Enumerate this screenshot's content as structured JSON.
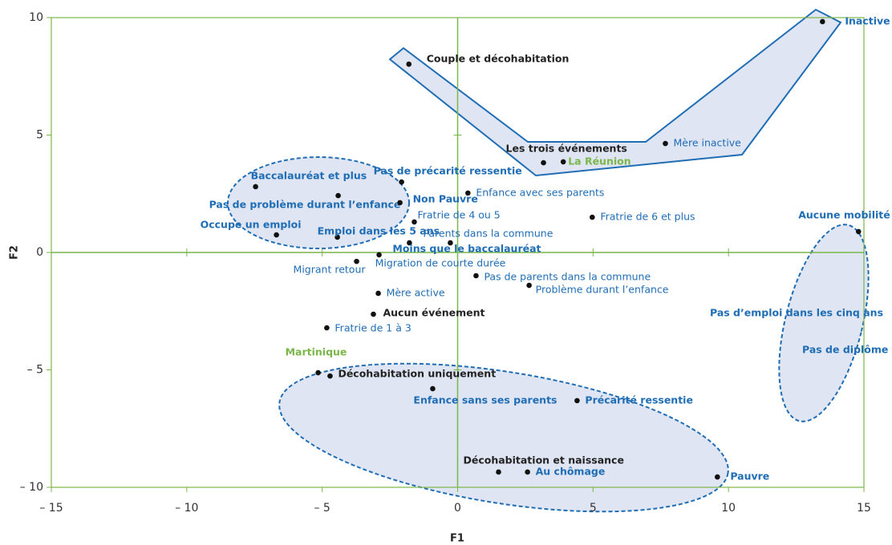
{
  "chart_data": {
    "type": "scatter",
    "xlabel": "F1",
    "ylabel": "F2",
    "xlim": [
      -15,
      15
    ],
    "ylim": [
      -10,
      10
    ],
    "xticks": [
      {
        "value": -15,
        "label": "– 15"
      },
      {
        "value": -10,
        "label": "– 10"
      },
      {
        "value": -5,
        "label": "– 5"
      },
      0,
      5,
      10,
      15
    ],
    "yticks": [
      {
        "value": -10,
        "label": "– 10"
      },
      {
        "value": -5,
        "label": "– 5"
      },
      0,
      5,
      10
    ],
    "frame_color": "#7ab648",
    "styles": {
      "bold-blue": {
        "color": "#1f6db5",
        "bold": true
      },
      "blue": {
        "color": "#1f6db5",
        "bold": false
      },
      "bold-black": {
        "color": "#222222",
        "bold": true
      },
      "green": {
        "color": "#7ab648",
        "bold": true
      }
    },
    "points": [
      {
        "label": "Inactive",
        "x": 13.47,
        "y": 9.83,
        "style": "bold-blue"
      },
      {
        "label": "Couple et décohabitation",
        "x": -1.8,
        "y": 8.02,
        "style": "bold-black"
      },
      {
        "label": "Mère inactive",
        "x": 7.67,
        "y": 4.64,
        "style": "blue"
      },
      {
        "label": "Les trois événements",
        "x": 3.17,
        "y": 3.82,
        "style": "bold-black"
      },
      {
        "label": "La Réunion",
        "x": 3.9,
        "y": 3.86,
        "style": "green"
      },
      {
        "label": "Pas de précarité ressentie",
        "x": -2.07,
        "y": 3.0,
        "style": "bold-blue"
      },
      {
        "label": "Baccalauréat et plus",
        "x": -7.46,
        "y": 2.8,
        "style": "bold-blue"
      },
      {
        "label": "Enfance avec ses parents",
        "x": 0.38,
        "y": 2.53,
        "style": "blue"
      },
      {
        "label": "Pas de problème durant l’enfance",
        "x": -4.41,
        "y": 2.42,
        "style": "bold-blue"
      },
      {
        "label": "Non Pauvre",
        "x": -2.13,
        "y": 2.12,
        "style": "bold-blue"
      },
      {
        "label": "Fratrie de 4 ou 5",
        "x": -1.6,
        "y": 1.3,
        "style": "blue"
      },
      {
        "label": "Fratrie de 6 et plus",
        "x": 4.97,
        "y": 1.5,
        "style": "blue"
      },
      {
        "label": "Aucune mobilité",
        "x": 14.8,
        "y": 0.89,
        "style": "bold-blue"
      },
      {
        "label": "Occupe un emploi",
        "x": -6.69,
        "y": 0.75,
        "style": "bold-blue"
      },
      {
        "label": "Emploi dans les 5 ans",
        "x": -4.44,
        "y": 0.65,
        "style": "bold-blue"
      },
      {
        "label": "Parents dans la commune",
        "x": -0.27,
        "y": 0.41,
        "style": "blue"
      },
      {
        "label": "Moins que le baccalauréat",
        "x": -1.78,
        "y": 0.41,
        "style": "bold-blue"
      },
      {
        "label": "Migration de courte durée",
        "x": -2.9,
        "y": -0.1,
        "style": "blue"
      },
      {
        "label": "Migrant retour",
        "x": -3.73,
        "y": -0.38,
        "style": "blue"
      },
      {
        "label": "Pas de parents dans la commune",
        "x": 0.68,
        "y": -0.99,
        "style": "blue"
      },
      {
        "label": "Problème durant l’enfance",
        "x": 2.64,
        "y": -1.4,
        "style": "blue"
      },
      {
        "label": "Mère active",
        "x": -2.93,
        "y": -1.74,
        "style": "blue"
      },
      {
        "label": "Aucun événement",
        "x": -3.11,
        "y": -2.63,
        "style": "bold-black"
      },
      {
        "label": "Fratrie de 1 à 3",
        "x": -4.83,
        "y": -3.21,
        "style": "blue"
      },
      {
        "label": "Martinique",
        "x": -5.15,
        "y": -5.12,
        "style": "green"
      },
      {
        "label": "Décohabitation uniquement",
        "x": -4.71,
        "y": -5.26,
        "style": "bold-black"
      },
      {
        "label": "Enfance sans ses  parents",
        "x": -0.92,
        "y": -5.8,
        "style": "bold-blue"
      },
      {
        "label": "Précarité ressentie",
        "x": 4.41,
        "y": -6.31,
        "style": "bold-blue"
      },
      {
        "label": "Décohabitation et naissance",
        "x": 1.51,
        "y": -9.35,
        "style": "bold-black"
      },
      {
        "label": "Au chômage",
        "x": 2.58,
        "y": -9.35,
        "style": "bold-blue"
      },
      {
        "label": "Pauvre",
        "x": 9.59,
        "y": -9.56,
        "style": "bold-blue"
      }
    ],
    "annotations": [
      {
        "text": "Pas d’emploi dans les cinq ans",
        "style": "bold-blue"
      },
      {
        "text": "Pas de diplôme",
        "style": "bold-blue"
      }
    ]
  }
}
